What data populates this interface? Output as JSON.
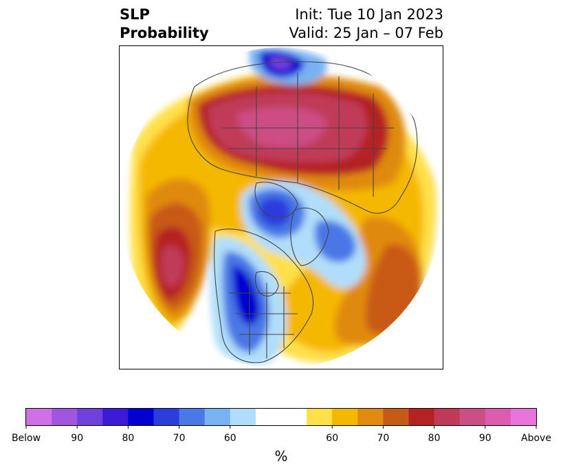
{
  "header": {
    "title_line1": "SLP",
    "title_line2": "Probability",
    "init_label": "Init: Tue 10 Jan 2023",
    "valid_label": "Valid: 25 Jan – 07 Feb"
  },
  "colorbar": {
    "unit_label": "%",
    "bins": [
      {
        "color": "#d070e8"
      },
      {
        "color": "#a056e0"
      },
      {
        "color": "#7040dd"
      },
      {
        "color": "#3c1ad8"
      },
      {
        "color": "#0000d0"
      },
      {
        "color": "#2a3edc"
      },
      {
        "color": "#4a78e6"
      },
      {
        "color": "#78b2f2"
      },
      {
        "color": "#b0defa"
      },
      {
        "color": "#ffffff"
      },
      {
        "color": "#ffffff"
      },
      {
        "color": "#ffe048"
      },
      {
        "color": "#f5b800"
      },
      {
        "color": "#e08a10"
      },
      {
        "color": "#c85a18"
      },
      {
        "color": "#b52224"
      },
      {
        "color": "#c03a58"
      },
      {
        "color": "#cc4e84"
      },
      {
        "color": "#dc5cae"
      },
      {
        "color": "#e874dd"
      }
    ],
    "tick_labels": [
      {
        "label": "Below",
        "edge": 0
      },
      {
        "label": "90",
        "edge": 2
      },
      {
        "label": "80",
        "edge": 4
      },
      {
        "label": "70",
        "edge": 6
      },
      {
        "label": "60",
        "edge": 8
      },
      {
        "label": "60",
        "edge": 12
      },
      {
        "label": "70",
        "edge": 14
      },
      {
        "label": "80",
        "edge": 16
      },
      {
        "label": "90",
        "edge": 18
      },
      {
        "label": "Above",
        "edge": 20
      }
    ]
  },
  "map": {
    "projection": "north-polar-stereographic",
    "coastline_color": "#444444"
  }
}
